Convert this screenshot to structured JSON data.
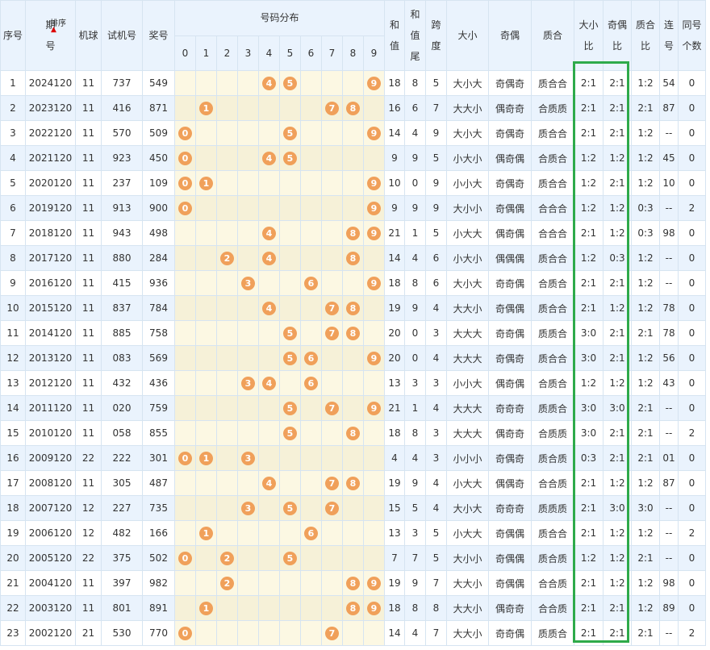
{
  "header": {
    "seq": "序号",
    "period_top": "期",
    "period_bottom": "号",
    "sort_label": "排序",
    "machine": "机球",
    "test_no": "试机号",
    "prize_no": "奖号",
    "dist_title": "号码分布",
    "digits": [
      "0",
      "1",
      "2",
      "3",
      "4",
      "5",
      "6",
      "7",
      "8",
      "9"
    ],
    "sum_top": "和",
    "sum_bottom": "值",
    "sumtail_top": "和",
    "sumtail_mid": "值",
    "sumtail_bottom": "尾",
    "span_top": "跨",
    "span_bottom": "度",
    "bigsmall": "大小",
    "oddeven": "奇偶",
    "primecomp": "质合",
    "bsratio_top": "大小",
    "bsratio_bottom": "比",
    "oeratio_top": "奇偶",
    "oeratio_bottom": "比",
    "pcratio_top": "质合",
    "pcratio_bottom": "比",
    "consec_top": "连",
    "consec_bottom": "号",
    "same_top": "同号",
    "same_bottom": "个数"
  },
  "highlight_color": "#2eaa4a",
  "ball_color": "#f0a05a",
  "rows": [
    {
      "seq": "1",
      "period": "2024120",
      "machine": "11",
      "test": "737",
      "prize": "549",
      "balls": [
        4,
        5,
        9
      ],
      "sum": "18",
      "tail": "8",
      "span": "5",
      "bs": "大小大",
      "oe": "奇偶奇",
      "pc": "质合合",
      "bsr": "2:1",
      "oer": "2:1",
      "pcr": "1:2",
      "con": "54",
      "same": "0"
    },
    {
      "seq": "2",
      "period": "2023120",
      "machine": "11",
      "test": "416",
      "prize": "871",
      "balls": [
        1,
        7,
        8
      ],
      "sum": "16",
      "tail": "6",
      "span": "7",
      "bs": "大大小",
      "oe": "偶奇奇",
      "pc": "合质质",
      "bsr": "2:1",
      "oer": "2:1",
      "pcr": "2:1",
      "con": "87",
      "same": "0"
    },
    {
      "seq": "3",
      "period": "2022120",
      "machine": "11",
      "test": "570",
      "prize": "509",
      "balls": [
        0,
        5,
        9
      ],
      "sum": "14",
      "tail": "4",
      "span": "9",
      "bs": "大小大",
      "oe": "奇偶奇",
      "pc": "质合合",
      "bsr": "2:1",
      "oer": "2:1",
      "pcr": "1:2",
      "con": "--",
      "same": "0"
    },
    {
      "seq": "4",
      "period": "2021120",
      "machine": "11",
      "test": "923",
      "prize": "450",
      "balls": [
        0,
        4,
        5
      ],
      "sum": "9",
      "tail": "9",
      "span": "5",
      "bs": "小大小",
      "oe": "偶奇偶",
      "pc": "合质合",
      "bsr": "1:2",
      "oer": "1:2",
      "pcr": "1:2",
      "con": "45",
      "same": "0"
    },
    {
      "seq": "5",
      "period": "2020120",
      "machine": "11",
      "test": "237",
      "prize": "109",
      "balls": [
        0,
        1,
        9
      ],
      "sum": "10",
      "tail": "0",
      "span": "9",
      "bs": "小小大",
      "oe": "奇偶奇",
      "pc": "质合合",
      "bsr": "1:2",
      "oer": "2:1",
      "pcr": "1:2",
      "con": "10",
      "same": "0"
    },
    {
      "seq": "6",
      "period": "2019120",
      "machine": "11",
      "test": "913",
      "prize": "900",
      "balls": [
        0,
        9
      ],
      "sum": "9",
      "tail": "9",
      "span": "9",
      "bs": "大小小",
      "oe": "奇偶偶",
      "pc": "合合合",
      "bsr": "1:2",
      "oer": "1:2",
      "pcr": "0:3",
      "con": "--",
      "same": "2"
    },
    {
      "seq": "7",
      "period": "2018120",
      "machine": "11",
      "test": "943",
      "prize": "498",
      "balls": [
        4,
        8,
        9
      ],
      "sum": "21",
      "tail": "1",
      "span": "5",
      "bs": "小大大",
      "oe": "偶奇偶",
      "pc": "合合合",
      "bsr": "2:1",
      "oer": "1:2",
      "pcr": "0:3",
      "con": "98",
      "same": "0"
    },
    {
      "seq": "8",
      "period": "2017120",
      "machine": "11",
      "test": "880",
      "prize": "284",
      "balls": [
        2,
        4,
        8
      ],
      "sum": "14",
      "tail": "4",
      "span": "6",
      "bs": "小大小",
      "oe": "偶偶偶",
      "pc": "质合合",
      "bsr": "1:2",
      "oer": "0:3",
      "pcr": "1:2",
      "con": "--",
      "same": "0"
    },
    {
      "seq": "9",
      "period": "2016120",
      "machine": "11",
      "test": "415",
      "prize": "936",
      "balls": [
        3,
        6,
        9
      ],
      "sum": "18",
      "tail": "8",
      "span": "6",
      "bs": "大小大",
      "oe": "奇奇偶",
      "pc": "合质合",
      "bsr": "2:1",
      "oer": "2:1",
      "pcr": "1:2",
      "con": "--",
      "same": "0"
    },
    {
      "seq": "10",
      "period": "2015120",
      "machine": "11",
      "test": "837",
      "prize": "784",
      "balls": [
        4,
        7,
        8
      ],
      "sum": "19",
      "tail": "9",
      "span": "4",
      "bs": "大大小",
      "oe": "奇偶偶",
      "pc": "质合合",
      "bsr": "2:1",
      "oer": "1:2",
      "pcr": "1:2",
      "con": "78",
      "same": "0"
    },
    {
      "seq": "11",
      "period": "2014120",
      "machine": "11",
      "test": "885",
      "prize": "758",
      "balls": [
        5,
        7,
        8
      ],
      "sum": "20",
      "tail": "0",
      "span": "3",
      "bs": "大大大",
      "oe": "奇奇偶",
      "pc": "质质合",
      "bsr": "3:0",
      "oer": "2:1",
      "pcr": "2:1",
      "con": "78",
      "same": "0"
    },
    {
      "seq": "12",
      "period": "2013120",
      "machine": "11",
      "test": "083",
      "prize": "569",
      "balls": [
        5,
        6,
        9
      ],
      "sum": "20",
      "tail": "0",
      "span": "4",
      "bs": "大大大",
      "oe": "奇偶奇",
      "pc": "质合合",
      "bsr": "3:0",
      "oer": "2:1",
      "pcr": "1:2",
      "con": "56",
      "same": "0"
    },
    {
      "seq": "13",
      "period": "2012120",
      "machine": "11",
      "test": "432",
      "prize": "436",
      "balls": [
        3,
        4,
        6
      ],
      "sum": "13",
      "tail": "3",
      "span": "3",
      "bs": "小小大",
      "oe": "偶奇偶",
      "pc": "合质合",
      "bsr": "1:2",
      "oer": "1:2",
      "pcr": "1:2",
      "con": "43",
      "same": "0"
    },
    {
      "seq": "14",
      "period": "2011120",
      "machine": "11",
      "test": "020",
      "prize": "759",
      "balls": [
        5,
        7,
        9
      ],
      "sum": "21",
      "tail": "1",
      "span": "4",
      "bs": "大大大",
      "oe": "奇奇奇",
      "pc": "质质合",
      "bsr": "3:0",
      "oer": "3:0",
      "pcr": "2:1",
      "con": "--",
      "same": "0"
    },
    {
      "seq": "15",
      "period": "2010120",
      "machine": "11",
      "test": "058",
      "prize": "855",
      "balls": [
        5,
        8
      ],
      "sum": "18",
      "tail": "8",
      "span": "3",
      "bs": "大大大",
      "oe": "偶奇奇",
      "pc": "合质质",
      "bsr": "3:0",
      "oer": "2:1",
      "pcr": "2:1",
      "con": "--",
      "same": "2"
    },
    {
      "seq": "16",
      "period": "2009120",
      "machine": "22",
      "test": "222",
      "prize": "301",
      "balls": [
        0,
        1,
        3
      ],
      "sum": "4",
      "tail": "4",
      "span": "3",
      "bs": "小小小",
      "oe": "奇偶奇",
      "pc": "质合质",
      "bsr": "0:3",
      "oer": "2:1",
      "pcr": "2:1",
      "con": "01",
      "same": "0"
    },
    {
      "seq": "17",
      "period": "2008120",
      "machine": "11",
      "test": "305",
      "prize": "487",
      "balls": [
        4,
        7,
        8
      ],
      "sum": "19",
      "tail": "9",
      "span": "4",
      "bs": "小大大",
      "oe": "偶偶奇",
      "pc": "合合质",
      "bsr": "2:1",
      "oer": "1:2",
      "pcr": "1:2",
      "con": "87",
      "same": "0"
    },
    {
      "seq": "18",
      "period": "2007120",
      "machine": "12",
      "test": "227",
      "prize": "735",
      "balls": [
        3,
        5,
        7
      ],
      "sum": "15",
      "tail": "5",
      "span": "4",
      "bs": "大小大",
      "oe": "奇奇奇",
      "pc": "质质质",
      "bsr": "2:1",
      "oer": "3:0",
      "pcr": "3:0",
      "con": "--",
      "same": "0"
    },
    {
      "seq": "19",
      "period": "2006120",
      "machine": "12",
      "test": "482",
      "prize": "166",
      "balls": [
        1,
        6
      ],
      "sum": "13",
      "tail": "3",
      "span": "5",
      "bs": "小大大",
      "oe": "奇偶偶",
      "pc": "质合合",
      "bsr": "2:1",
      "oer": "1:2",
      "pcr": "1:2",
      "con": "--",
      "same": "2"
    },
    {
      "seq": "20",
      "period": "2005120",
      "machine": "22",
      "test": "375",
      "prize": "502",
      "balls": [
        0,
        2,
        5
      ],
      "sum": "7",
      "tail": "7",
      "span": "5",
      "bs": "大小小",
      "oe": "奇偶偶",
      "pc": "质合质",
      "bsr": "1:2",
      "oer": "1:2",
      "pcr": "2:1",
      "con": "--",
      "same": "0"
    },
    {
      "seq": "21",
      "period": "2004120",
      "machine": "11",
      "test": "397",
      "prize": "982",
      "balls": [
        2,
        8,
        9
      ],
      "sum": "19",
      "tail": "9",
      "span": "7",
      "bs": "大大小",
      "oe": "奇偶偶",
      "pc": "合合质",
      "bsr": "2:1",
      "oer": "1:2",
      "pcr": "1:2",
      "con": "98",
      "same": "0"
    },
    {
      "seq": "22",
      "period": "2003120",
      "machine": "11",
      "test": "801",
      "prize": "891",
      "balls": [
        1,
        8,
        9
      ],
      "sum": "18",
      "tail": "8",
      "span": "8",
      "bs": "大大小",
      "oe": "偶奇奇",
      "pc": "合合质",
      "bsr": "2:1",
      "oer": "2:1",
      "pcr": "1:2",
      "con": "89",
      "same": "0"
    },
    {
      "seq": "23",
      "period": "2002120",
      "machine": "21",
      "test": "530",
      "prize": "770",
      "balls": [
        0,
        7
      ],
      "sum": "14",
      "tail": "4",
      "span": "7",
      "bs": "大大小",
      "oe": "奇奇偶",
      "pc": "质质合",
      "bsr": "2:1",
      "oer": "2:1",
      "pcr": "2:1",
      "con": "--",
      "same": "2"
    }
  ]
}
